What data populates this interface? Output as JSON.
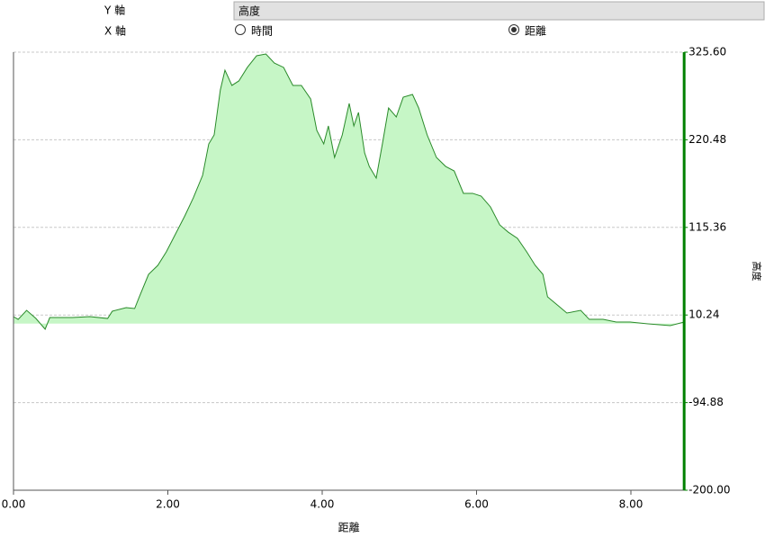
{
  "controls": {
    "y_axis_label": "Y 軸",
    "y_axis_select": "高度",
    "x_axis_label": "X 軸",
    "x_options": [
      "時間",
      "距離"
    ],
    "x_selected": 1
  },
  "chart_data": {
    "type": "area",
    "xlabel": "距離",
    "ylabel": "高度",
    "y_axis_side": "right",
    "color": "#2a8a2a",
    "fill_color": "#c6f6c6",
    "axis_color": "#008000",
    "grid": true,
    "xlim": [
      0,
      8.69
    ],
    "ylim": [
      -200,
      325.6
    ],
    "xticks": [
      {
        "value": 0,
        "label": "0.00"
      },
      {
        "value": 2,
        "label": "2.00"
      },
      {
        "value": 4,
        "label": "4.00"
      },
      {
        "value": 6,
        "label": "6.00"
      },
      {
        "value": 8,
        "label": "8.00"
      }
    ],
    "yticks": [
      {
        "value": -200,
        "label": "-200.00"
      },
      -94.88,
      10.24,
      115.36,
      220.48,
      {
        "value": 325.6,
        "label": "325.60"
      }
    ],
    "x": [
      0.0,
      0.06,
      0.17,
      0.29,
      0.41,
      0.47,
      0.76,
      0.99,
      1.22,
      1.28,
      1.46,
      1.57,
      1.63,
      1.75,
      1.87,
      1.98,
      2.1,
      2.22,
      2.33,
      2.45,
      2.53,
      2.6,
      2.68,
      2.74,
      2.83,
      2.92,
      3.03,
      3.15,
      3.27,
      3.38,
      3.5,
      3.62,
      3.73,
      3.85,
      3.93,
      4.02,
      4.08,
      4.16,
      4.26,
      4.35,
      4.41,
      4.47,
      4.55,
      4.61,
      4.7,
      4.78,
      4.86,
      4.96,
      5.05,
      5.17,
      5.25,
      5.36,
      5.48,
      5.6,
      5.71,
      5.83,
      5.95,
      6.06,
      6.18,
      6.3,
      6.41,
      6.53,
      6.65,
      6.76,
      6.86,
      6.92,
      7.06,
      7.17,
      7.35,
      7.46,
      7.64,
      7.81,
      7.99,
      8.22,
      8.51,
      8.69
    ],
    "values": [
      8.3,
      5.0,
      15.8,
      6.1,
      -6.8,
      7.2,
      7.2,
      8.3,
      6.1,
      14.8,
      19.1,
      18.0,
      32.0,
      59.0,
      69.8,
      86.0,
      107.6,
      129.2,
      150.8,
      177.7,
      215.5,
      226.3,
      280.3,
      304.0,
      285.7,
      291.1,
      307.3,
      321.3,
      323.4,
      312.6,
      307.3,
      285.7,
      285.7,
      269.5,
      231.7,
      215.5,
      237.1,
      199.3,
      226.3,
      264.1,
      237.1,
      253.3,
      204.7,
      188.5,
      174.5,
      215.5,
      258.7,
      247.9,
      271.6,
      274.9,
      258.7,
      226.3,
      199.3,
      188.5,
      183.1,
      156.2,
      156.2,
      152.9,
      140.0,
      118.4,
      109.7,
      102.2,
      86.0,
      69.8,
      59.0,
      32.0,
      21.2,
      12.6,
      15.8,
      5.0,
      5.0,
      1.8,
      1.8,
      -0.3,
      -2.5,
      1.8
    ]
  }
}
